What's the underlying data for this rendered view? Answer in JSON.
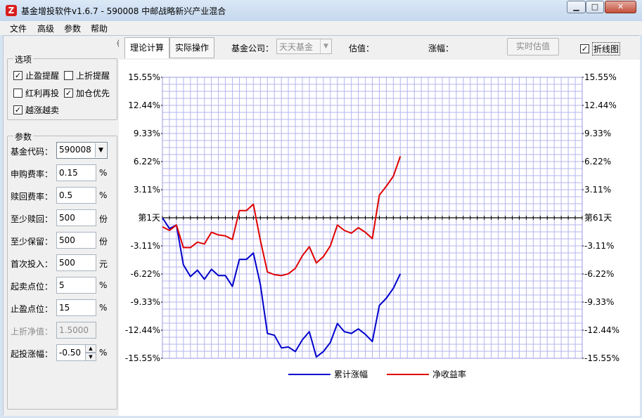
{
  "window": {
    "title": "基金增投软件v1.6.7 - 590008 中邮战略新兴产业混合",
    "app_icon": "Z",
    "min_glyph": "▁",
    "max_glyph": "□",
    "close_glyph": "✕"
  },
  "menu": [
    "文件",
    "高级",
    "参数",
    "帮助"
  ],
  "left": {
    "collapse_glyph": "《",
    "options_title": "选项",
    "options": [
      {
        "label": "止盈提醒",
        "checked": true
      },
      {
        "label": "上折提醒",
        "checked": false
      },
      {
        "label": "红利再投",
        "checked": false
      },
      {
        "label": "加仓优先",
        "checked": true
      },
      {
        "label": "越涨越卖",
        "checked": true
      }
    ],
    "params_title": "参数",
    "params": [
      {
        "label": "基金代码：",
        "value": "590008",
        "unit": ""
      },
      {
        "label": "申购费率：",
        "value": "0.15",
        "unit": "%"
      },
      {
        "label": "赎回费率：",
        "value": "0.5",
        "unit": "%"
      },
      {
        "label": "至少赎回：",
        "value": "500",
        "unit": "份"
      },
      {
        "label": "至少保留：",
        "value": "500",
        "unit": "份"
      },
      {
        "label": "首次投入：",
        "value": "500",
        "unit": "元"
      },
      {
        "label": "起卖点位：",
        "value": "5",
        "unit": "%"
      },
      {
        "label": "止盈点位：",
        "value": "15",
        "unit": "%"
      },
      {
        "label": "上折净值：",
        "value": "1.5000",
        "unit": ""
      },
      {
        "label": "起投涨幅：",
        "value": "-0.50",
        "unit": "%"
      }
    ],
    "check_glyph": "✓",
    "arrow_down": "▼",
    "arrow_up": "▲"
  },
  "toolbar": {
    "tab_theory": "理论计算",
    "tab_actual": "实际操作",
    "company_label": "基金公司：",
    "company_value": "天天基金",
    "estimate_label": "估值：",
    "change_label": "涨幅：",
    "realtime_button": "实时估值",
    "line_chart_label": "折线图",
    "line_chart_checked": true
  },
  "chart_data": {
    "type": "line",
    "ylim": [
      -15.55,
      15.55
    ],
    "y_ticks": [
      "15.55%",
      "12.44%",
      "9.33%",
      "6.22%",
      "3.11%",
      "",
      "-3.11%",
      "-6.22%",
      "-9.33%",
      "-12.44%",
      "-15.55%"
    ],
    "y_tick_values": [
      15.55,
      12.44,
      9.33,
      6.22,
      3.11,
      0,
      -3.11,
      -6.22,
      -9.33,
      -12.44,
      -15.55
    ],
    "x_start_label": "第1天",
    "x_end_label": "第61天",
    "x_count": 61,
    "series": [
      {
        "name": "累计涨幅",
        "color": "#0000cc",
        "x": [
          1,
          2,
          3,
          4,
          5,
          6,
          7,
          8,
          9,
          10,
          11,
          12,
          13,
          14,
          15,
          16,
          17,
          18,
          19,
          20,
          21,
          22,
          23,
          24,
          25,
          26,
          27,
          28,
          29,
          30,
          31,
          32,
          33,
          34,
          35
        ],
        "values": [
          0,
          -1.2,
          -0.8,
          -5.2,
          -6.5,
          -5.8,
          -6.8,
          -5.7,
          -6.4,
          -6.4,
          -7.6,
          -4.6,
          -4.6,
          -3.9,
          -7.4,
          -12.8,
          -13.0,
          -14.4,
          -14.3,
          -14.8,
          -13.5,
          -12.6,
          -15.4,
          -14.8,
          -13.8,
          -11.7,
          -12.6,
          -12.8,
          -12.3,
          -12.9,
          -13.7,
          -9.7,
          -8.9,
          -7.8,
          -6.2
        ]
      },
      {
        "name": "净收益率",
        "color": "#e00000",
        "x": [
          1,
          2,
          3,
          4,
          5,
          6,
          7,
          8,
          9,
          10,
          11,
          12,
          13,
          14,
          15,
          16,
          17,
          18,
          19,
          20,
          21,
          22,
          23,
          24,
          25,
          26,
          27,
          28,
          29,
          30,
          31,
          32,
          33,
          34,
          35
        ],
        "values": [
          -1.0,
          -1.4,
          -0.8,
          -3.3,
          -3.3,
          -2.7,
          -2.9,
          -1.6,
          -1.9,
          -2.0,
          -2.4,
          0.8,
          0.8,
          1.5,
          -2.5,
          -6.0,
          -6.3,
          -6.4,
          -6.2,
          -5.6,
          -4.2,
          -3.2,
          -5.0,
          -4.3,
          -3.1,
          -0.8,
          -1.4,
          -1.7,
          -1.1,
          -1.6,
          -2.3,
          2.5,
          3.5,
          4.6,
          6.8
        ]
      }
    ],
    "legend_position": "bottom-center",
    "grid": true
  }
}
